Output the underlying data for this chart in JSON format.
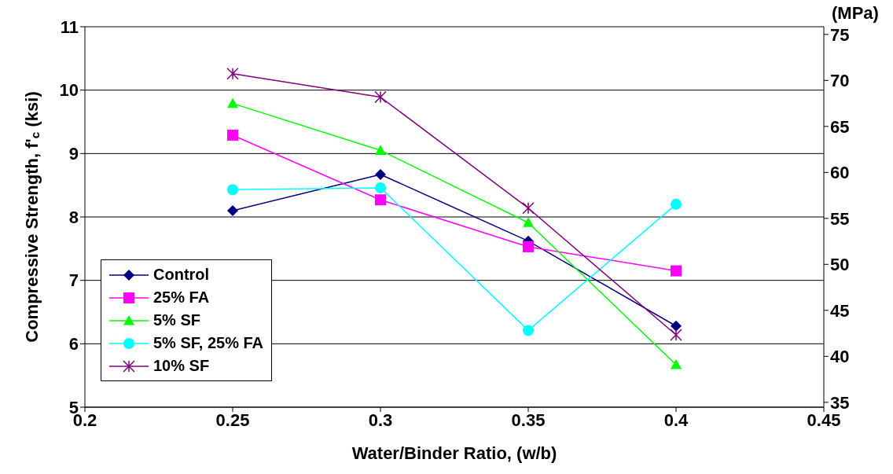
{
  "chart_data": {
    "type": "line",
    "xlabel": "Water/Binder Ratio, (w/b)",
    "ylabel": "Compressive Strength, f'$_{c}$ (ksi)",
    "y2label": "(MPa)",
    "x": [
      0.25,
      0.3,
      0.35,
      0.4
    ],
    "series": [
      {
        "name": "Control",
        "color": "#000080",
        "marker": "diamond",
        "values": [
          8.1,
          8.67,
          7.62,
          6.28
        ]
      },
      {
        "name": "25% FA",
        "color": "#ff00ff",
        "marker": "square",
        "values": [
          9.29,
          8.27,
          7.53,
          7.15
        ]
      },
      {
        "name": "5% SF",
        "color": "#00ff00",
        "marker": "triangle",
        "values": [
          9.79,
          9.05,
          7.91,
          5.67
        ]
      },
      {
        "name": "5% SF, 25% FA",
        "color": "#00ffff",
        "marker": "circle",
        "values": [
          8.43,
          8.46,
          6.21,
          8.2
        ]
      },
      {
        "name": "10% SF",
        "color": "#800080",
        "marker": "cross",
        "values": [
          10.26,
          9.89,
          8.14,
          6.14
        ]
      }
    ],
    "xlim": [
      0.2,
      0.45
    ],
    "xticks": [
      0.2,
      0.25,
      0.3,
      0.35,
      0.4,
      0.45
    ],
    "ylim": [
      5,
      11
    ],
    "yticks": [
      5,
      6,
      7,
      8,
      9,
      10,
      11
    ],
    "y2lim": [
      34.47,
      75.84
    ],
    "y2ticks": [
      35,
      40,
      45,
      50,
      55,
      60,
      65,
      70,
      75
    ],
    "grid": "y",
    "legend": "bottom left"
  }
}
